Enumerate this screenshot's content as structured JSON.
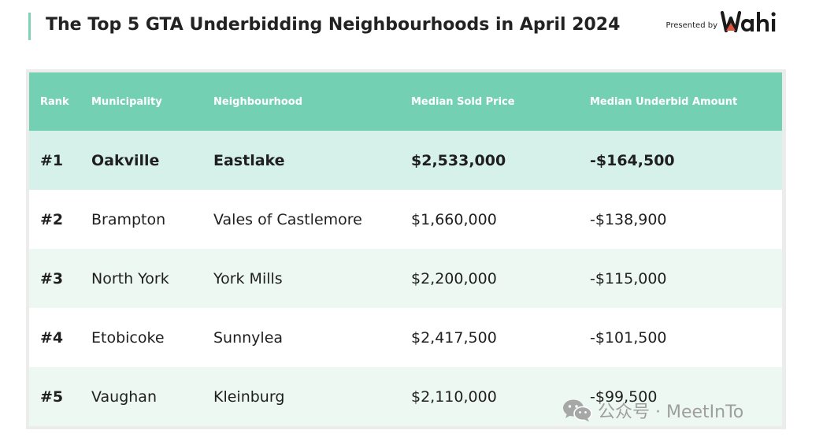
{
  "title": "The Top 5 GTA Underbidding Neighbourhoods in April 2024",
  "brand": {
    "presented_by": "Presented by",
    "logo_text": "Wahi",
    "logo_color": "#1a1a1a",
    "logo_accent": "#e0533d"
  },
  "table": {
    "header_color": "#74d0b3",
    "headers": {
      "rank": "Rank",
      "municipality": "Municipality",
      "neighbourhood": "Neighbourhood",
      "median_sold_price": "Median Sold Price",
      "median_underbid_amount": "Median Underbid Amount"
    },
    "rows": [
      {
        "rank": "#1",
        "municipality": "Oakville",
        "neighbourhood": "Eastlake",
        "median_sold_price": "$2,533,000",
        "median_underbid_amount": "-$164,500"
      },
      {
        "rank": "#2",
        "municipality": "Brampton",
        "neighbourhood": "Vales of Castlemore",
        "median_sold_price": "$1,660,000",
        "median_underbid_amount": "-$138,900"
      },
      {
        "rank": "#3",
        "municipality": "North York",
        "neighbourhood": "York Mills",
        "median_sold_price": "$2,200,000",
        "median_underbid_amount": "-$115,000"
      },
      {
        "rank": "#4",
        "municipality": "Etobicoke",
        "neighbourhood": "Sunnylea",
        "median_sold_price": "$2,417,500",
        "median_underbid_amount": "-$101,500"
      },
      {
        "rank": "#5",
        "municipality": "Vaughan",
        "neighbourhood": "Kleinburg",
        "median_sold_price": "$2,110,000",
        "median_underbid_amount": "-$99,500"
      }
    ]
  },
  "watermark": {
    "icon": "wechat-icon",
    "text": "公众号 · MeetInTo"
  }
}
